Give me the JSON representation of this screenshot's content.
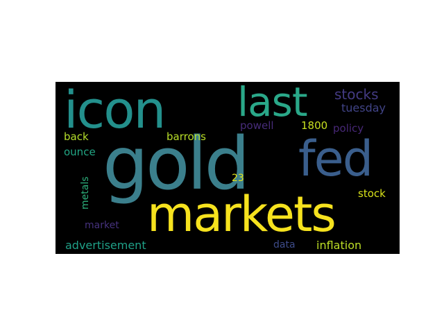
{
  "colors": {
    "background": "#000000",
    "page": "#ffffff"
  },
  "words": [
    {
      "id": "gold",
      "text": "gold",
      "color": "#3b7f8c"
    },
    {
      "id": "icon",
      "text": "icon",
      "color": "#23908c"
    },
    {
      "id": "markets",
      "text": "markets",
      "color": "#f6e21e"
    },
    {
      "id": "last",
      "text": "last",
      "color": "#2aa889"
    },
    {
      "id": "fed",
      "text": "fed",
      "color": "#3a5e8c"
    },
    {
      "id": "stocks",
      "text": "stocks",
      "color": "#443b84"
    },
    {
      "id": "tuesday",
      "text": "tuesday",
      "color": "#414487"
    },
    {
      "id": "powell",
      "text": "powell",
      "color": "#472c7a"
    },
    {
      "id": "1800",
      "text": "1800",
      "color": "#c8e020"
    },
    {
      "id": "policy",
      "text": "policy",
      "color": "#482878"
    },
    {
      "id": "back",
      "text": "back",
      "color": "#b5de2b"
    },
    {
      "id": "barrons",
      "text": "barrons",
      "color": "#b8de29"
    },
    {
      "id": "ounce",
      "text": "ounce",
      "color": "#22a785"
    },
    {
      "id": "metals",
      "text": "metals",
      "color": "#2db27d"
    },
    {
      "id": "23",
      "text": "23",
      "color": "#e5e419"
    },
    {
      "id": "stock",
      "text": "stock",
      "color": "#d8e219"
    },
    {
      "id": "market",
      "text": "market",
      "color": "#46327e"
    },
    {
      "id": "advertisement",
      "text": "advertisement",
      "color": "#1fa188"
    },
    {
      "id": "data",
      "text": "data",
      "color": "#3e4c8a"
    },
    {
      "id": "inflation",
      "text": "inflation",
      "color": "#bddf26"
    }
  ]
}
